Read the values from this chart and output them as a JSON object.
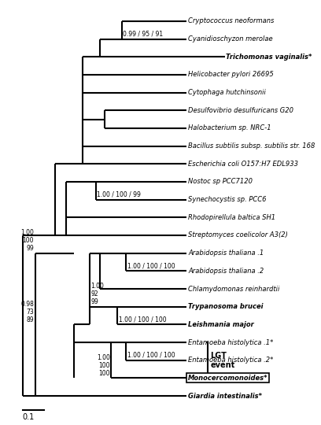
{
  "lw": 1.5,
  "taxa_y": {
    "Cryptococcus neoformans": 21.0,
    "Cyanidioschyzon merolae": 20.0,
    "Trichomonas vaginalis*": 19.0,
    "Helicobacter pylori 26695": 18.0,
    "Cytophaga hutchinsonii": 17.0,
    "Desulfovibrio desulfuricans G20": 16.0,
    "Halobacterium sp. NRC-1": 15.0,
    "Bacillus subtilis subsp. subtilis str. 168": 14.0,
    "Escherichia coli O157:H7 EDL933": 13.0,
    "Nostoc sp PCC7120": 12.0,
    "Synechocystis sp. PCC6": 11.0,
    "Rhodopirellula baltica SH1": 10.0,
    "Streptomyces coelicolor A3(2)": 9.0,
    "Arabidopsis thaliana .1": 8.0,
    "Arabidopsis thaliana .2": 7.0,
    "Chlamydomonas reinhardtii": 6.0,
    "Trypanosoma brucei": 5.0,
    "Leishmania major": 4.0,
    "Entamoeba histolytica .1*": 3.0,
    "Entamoeba histolytica .2*": 2.0,
    "Monocercomonoides*": 1.0,
    "Giardia intestinalis*": 0.0
  },
  "bold_taxa": [
    "Trichomonas vaginalis*",
    "Trypanosoma brucei",
    "Leishmania major",
    "Monocercomonoides*",
    "Giardia intestinalis*"
  ],
  "boxed_taxa": [
    "Monocercomonoides*"
  ]
}
